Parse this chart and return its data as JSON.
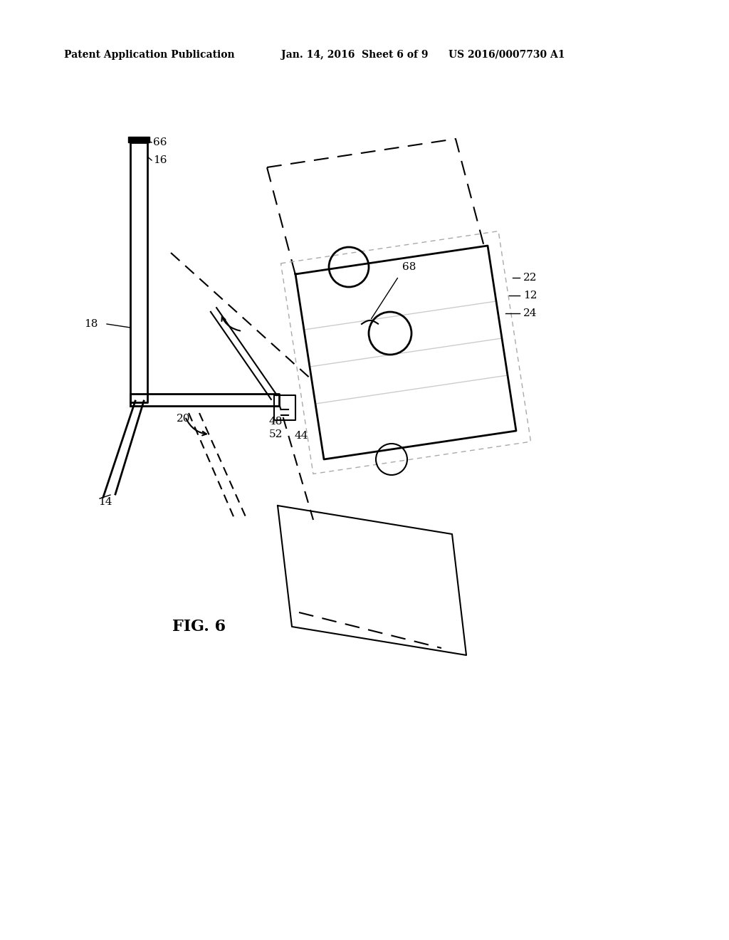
{
  "header_left": "Patent Application Publication",
  "header_mid": "Jan. 14, 2016  Sheet 6 of 9",
  "header_right": "US 2016/0007730 A1",
  "fig_label": "FIG. 6",
  "background": "#ffffff",
  "line_color": "#000000",
  "dashed_color": "#888888"
}
